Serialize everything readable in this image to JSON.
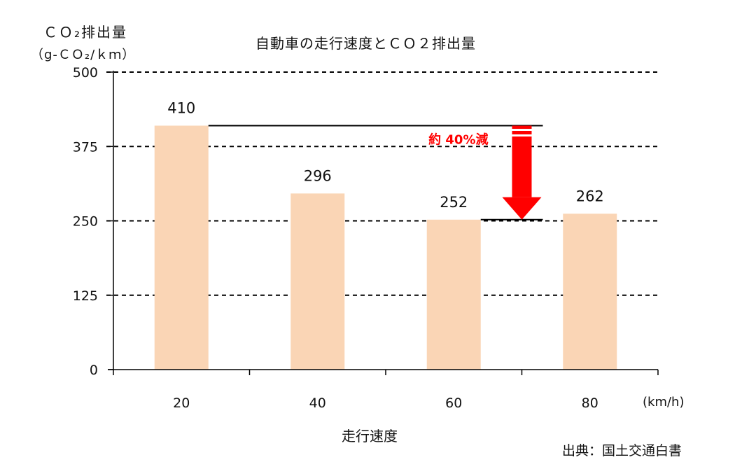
{
  "chart_data": {
    "type": "bar",
    "title": "自動車の走行速度とＣＯ２排出量",
    "ylabel_line1": "ＣＯ₂排出量",
    "ylabel_line2": "（g-ＣＯ₂/ｋｍ）",
    "xlabel": "走行速度",
    "x_unit": "(km/h)",
    "categories": [
      "20",
      "40",
      "60",
      "80"
    ],
    "values": [
      410,
      296,
      252,
      262
    ],
    "ylim": [
      0,
      500
    ],
    "yticks": [
      0,
      125,
      250,
      375,
      500
    ],
    "grid": "dashed horizontal",
    "bar_color": "#fad5b5",
    "annotation": {
      "text": "約 40%減",
      "color": "#ff0000",
      "from_value": 410,
      "to_value": 252
    },
    "source": "出典：国土交通白書"
  }
}
